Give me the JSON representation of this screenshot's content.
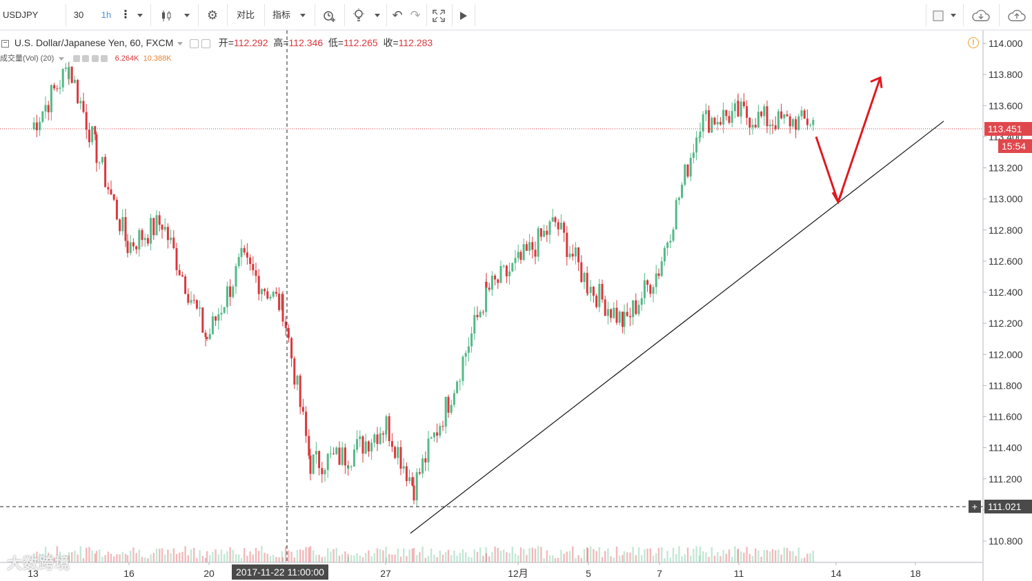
{
  "toolbar": {
    "symbol": "USDJPY",
    "interval_count": "30",
    "interval": "1h",
    "compare_label": "对比",
    "indicators_label": "指标"
  },
  "legend": {
    "title": "U.S. Dollar/Japanese Yen, 60, FXCM",
    "open_label": "开",
    "open_value": "112.292",
    "high_label": "高",
    "high_value": "112.346",
    "low_label": "低",
    "low_value": "112.265",
    "close_label": "收",
    "close_value": "112.283",
    "volume_label": "成交量(Vol) (20)",
    "volume_value": "6.264K",
    "volume_ma_value": "10.388K"
  },
  "price_tags": {
    "current_price": "113.451",
    "countdown": "15:54",
    "crosshair_price": "111.021",
    "crosshair_date": "2017-11-22 11:00:00"
  },
  "watermark": "大数跨境",
  "colors": {
    "up": "#53b987",
    "down": "#d9373c",
    "annotation_arrow": "#e0191f",
    "price_tag": "#e0474c",
    "crosshair_tag": "#4a4a4a"
  },
  "chart_data": {
    "type": "candlestick",
    "symbol": "USDJPY",
    "timeframe": "60",
    "source": "FXCM",
    "y_ticks": [
      "114.000",
      "113.800",
      "113.600",
      "113.400",
      "113.200",
      "113.000",
      "112.800",
      "112.600",
      "112.400",
      "112.200",
      "112.000",
      "111.800",
      "111.600",
      "111.400",
      "111.200",
      "111.000",
      "110.800"
    ],
    "ylim": [
      110.75,
      114.05
    ],
    "x_ticks": [
      "13",
      "16",
      "20",
      "27",
      "12月",
      "5",
      "7",
      "11",
      "14",
      "18"
    ],
    "approx_path": [
      {
        "date": "11-13",
        "price": 113.45
      },
      {
        "date": "11-14",
        "price": 113.85
      },
      {
        "date": "11-15",
        "price": 113.3
      },
      {
        "date": "11-16",
        "price": 112.7
      },
      {
        "date": "11-17",
        "price": 112.85
      },
      {
        "date": "11-20",
        "price": 112.1
      },
      {
        "date": "11-21",
        "price": 112.6
      },
      {
        "date": "11-22",
        "price": 112.3
      },
      {
        "date": "11-23",
        "price": 111.3
      },
      {
        "date": "11-24",
        "price": 111.35
      },
      {
        "date": "11-27",
        "price": 111.55
      },
      {
        "date": "11-28",
        "price": 111.15
      },
      {
        "date": "11-29",
        "price": 111.7
      },
      {
        "date": "11-30",
        "price": 112.4
      },
      {
        "date": "12-01",
        "price": 112.6
      },
      {
        "date": "12-04",
        "price": 112.85
      },
      {
        "date": "12-05",
        "price": 112.45
      },
      {
        "date": "12-06",
        "price": 112.2
      },
      {
        "date": "12-07",
        "price": 112.55
      },
      {
        "date": "12-08",
        "price": 113.5
      },
      {
        "date": "12-11",
        "price": 113.55
      },
      {
        "date": "12-12",
        "price": 113.5
      }
    ],
    "annotations": {
      "trendline_from": {
        "date": "11-28",
        "price": 110.85
      },
      "trendline_to": {
        "date": "12-18",
        "price": 113.5
      },
      "arrow_down_to": {
        "date": "12-14",
        "price": 112.98
      },
      "arrow_up_to": {
        "date": "12-16",
        "price": 113.78
      }
    }
  }
}
